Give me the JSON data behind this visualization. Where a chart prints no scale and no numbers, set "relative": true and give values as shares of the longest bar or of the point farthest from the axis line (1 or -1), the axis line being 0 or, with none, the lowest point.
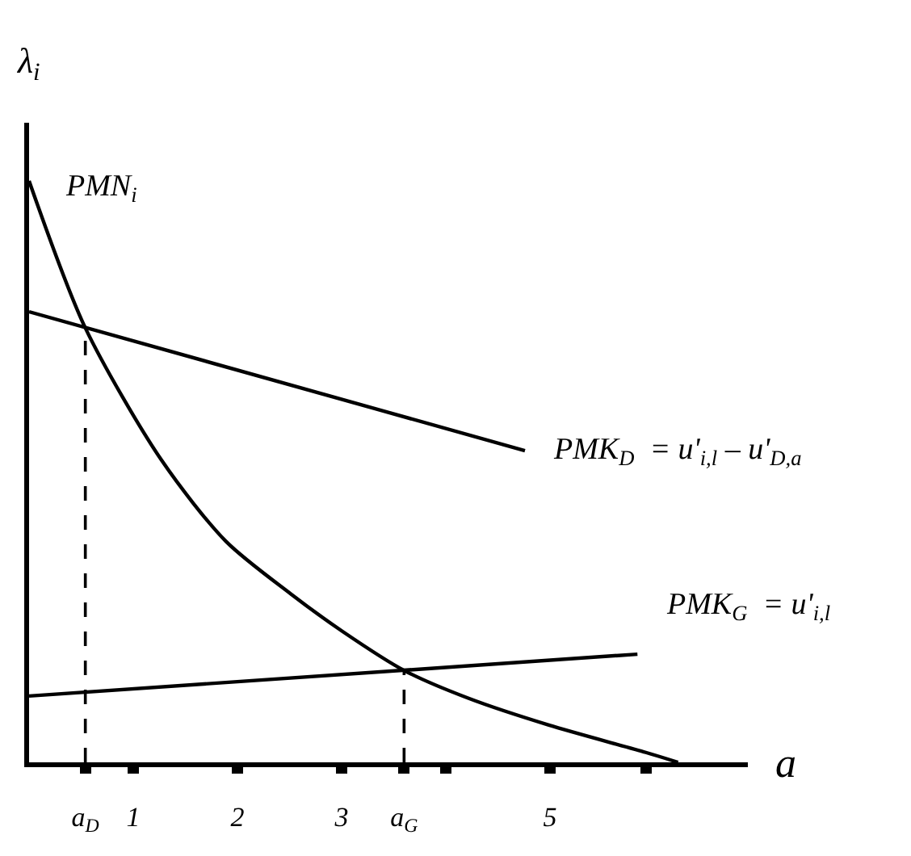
{
  "chart_data": {
    "type": "line",
    "relative": true,
    "xlabel": "a",
    "ylabel": "λ$_{i}$",
    "xlim": [
      0,
      6.9
    ],
    "xticks": [
      {
        "value": 0.54,
        "label": "a$_{D}$"
      },
      1,
      2,
      3,
      {
        "value": 3.6,
        "label": "a$_{G}$"
      },
      {
        "value": 4,
        "label": null
      },
      5,
      {
        "value": 5.92,
        "label": null
      }
    ],
    "series": [
      {
        "name": "PMN$_{i}$",
        "color": "#000000",
        "x": [
          0,
          0.54,
          1.27,
          1.89,
          2.51,
          3.01,
          3.6,
          4.22,
          4.99,
          5.92,
          6.23
        ],
        "values": [
          1.0,
          0.747,
          0.52,
          0.38,
          0.29,
          0.225,
          0.158,
          0.11,
          0.064,
          0.017,
          0
        ]
      },
      {
        "name": "PMK$_{D}$  = u'$_{i,l}$ – u'$_{D,a}$",
        "color": "#000000",
        "x": [
          0,
          4.76
        ],
        "values": [
          0.775,
          0.536
        ]
      },
      {
        "name": "PMK$_{G}$  = u'$_{i,l}$",
        "color": "#000000",
        "x": [
          0,
          5.84
        ],
        "values": [
          0.114,
          0.186
        ]
      }
    ],
    "ref_lines": [
      {
        "axis": "x",
        "value": 0.54,
        "color": "#000000",
        "line_style": "dashed"
      },
      {
        "axis": "x",
        "value": 3.6,
        "color": "#000000",
        "line_style": "dashed"
      }
    ],
    "legend": false,
    "marker": "none",
    "line_style": "solid"
  }
}
